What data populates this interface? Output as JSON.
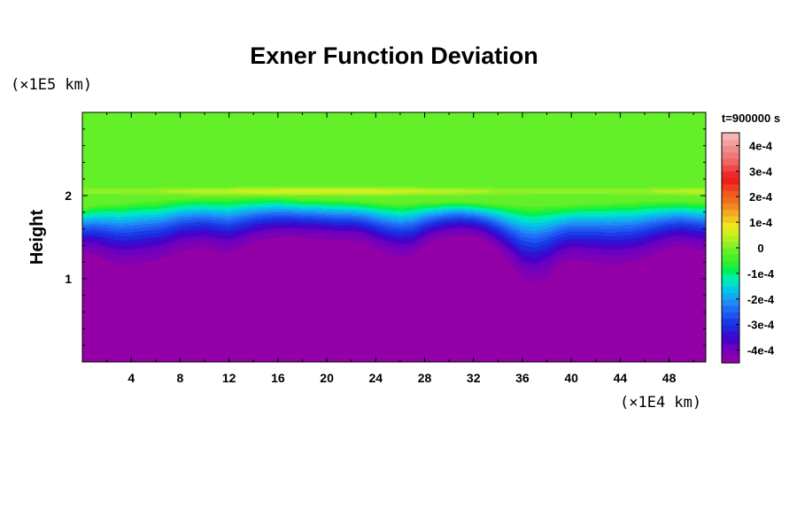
{
  "chart_data": {
    "type": "heatmap",
    "title": "Exner Function Deviation",
    "ylabel": "Height",
    "x_units": "(×1E4 km)",
    "y_units": "(×1E5 km)",
    "time_label": "t=900000 s",
    "xlim": [
      0,
      51
    ],
    "ylim": [
      0,
      3
    ],
    "x_ticks": [
      4,
      8,
      12,
      16,
      20,
      24,
      28,
      32,
      36,
      40,
      44,
      48
    ],
    "x_tick_labels": [
      "4",
      "8",
      "12",
      "16",
      "20",
      "24",
      "28",
      "32",
      "36",
      "40",
      "44",
      "48"
    ],
    "y_ticks": [
      1,
      2
    ],
    "y_tick_labels": [
      "1",
      "2"
    ],
    "colorbar": {
      "range": [
        -0.00045,
        0.00045
      ],
      "ticks": [
        0.0004,
        0.0003,
        0.0002,
        0.0001,
        0,
        -0.0001,
        -0.0002,
        -0.0003,
        -0.0004
      ],
      "tick_labels": [
        "4e-4",
        "3e-4",
        "2e-4",
        "1e-4",
        "0",
        "-1e-4",
        "-2e-4",
        "-3e-4",
        "-4e-4"
      ],
      "colors": [
        "#9400a8",
        "#7d00b4",
        "#6a00c0",
        "#4a00c8",
        "#3210d2",
        "#1f28dc",
        "#1a3ce6",
        "#1e55f0",
        "#1e6ef5",
        "#1e8cf5",
        "#14aaf0",
        "#00c8e6",
        "#00e1c8",
        "#00f0a0",
        "#00f05a",
        "#28f032",
        "#46f028",
        "#64f028",
        "#8cf028",
        "#b4f01e",
        "#d2f01e",
        "#f0e61e",
        "#f0c81e",
        "#f0aa1e",
        "#f08c1e",
        "#f06e1e",
        "#f05a1e",
        "#f03c1e",
        "#f01e1e",
        "#f02828",
        "#f04646",
        "#f06464",
        "#f07878",
        "#f08c8c",
        "#f5a0a0",
        "#f5b4b4"
      ]
    },
    "field": {
      "top_value": -2e-05,
      "interface_height": [
        1.27,
        1.25,
        1.18,
        1.13,
        1.12,
        1.15,
        1.18,
        1.22,
        1.3,
        1.32,
        1.34,
        1.3,
        1.27,
        1.33,
        1.4,
        1.44,
        1.46,
        1.47,
        1.46,
        1.45,
        1.44,
        1.42,
        1.43,
        1.41,
        1.33,
        1.26,
        1.22,
        1.24,
        1.36,
        1.44,
        1.48,
        1.49,
        1.48,
        1.42,
        1.3,
        1.13,
        0.95,
        0.9,
        0.97,
        1.12,
        1.18,
        1.17,
        1.15,
        1.13,
        1.13,
        1.15,
        1.2,
        1.27,
        1.33,
        1.36,
        1.33,
        1.3
      ],
      "upper_edge_height": [
        1.85,
        1.88,
        1.9,
        1.9,
        1.92,
        1.93,
        1.93,
        1.95,
        1.96,
        1.97,
        1.97,
        1.97,
        1.97,
        1.98,
        1.98,
        1.98,
        1.98,
        1.97,
        1.96,
        1.96,
        1.95,
        1.95,
        1.94,
        1.93,
        1.92,
        1.91,
        1.9,
        1.91,
        1.92,
        1.92,
        1.93,
        1.93,
        1.92,
        1.91,
        1.9,
        1.89,
        1.88,
        1.87,
        1.88,
        1.88,
        1.89,
        1.9,
        1.91,
        1.91,
        1.92,
        1.92,
        1.93,
        1.93,
        1.93,
        1.93,
        1.92,
        1.92
      ],
      "layer_height": 2.05,
      "layer_peak_value": 9e-05
    }
  }
}
